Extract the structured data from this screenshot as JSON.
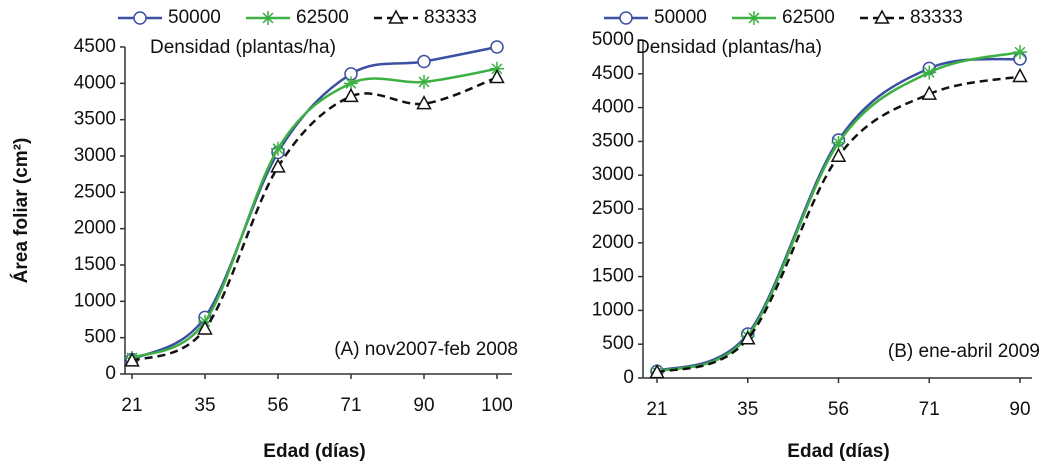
{
  "chart_data": [
    {
      "type": "line",
      "y_label": "Área foliar (cm²)",
      "x_label": "Edad (días)",
      "legend_title": "Densidad (plantas/ha)",
      "annotation": "(A) nov2007-feb 2008",
      "categories": [
        "21",
        "35",
        "56",
        "71",
        "90",
        "100"
      ],
      "series": [
        {
          "name": "50000",
          "color": "#3b4fa3",
          "marker": "circle",
          "dash": false,
          "values": [
            200,
            780,
            3050,
            4130,
            4300,
            4500
          ]
        },
        {
          "name": "62500",
          "color": "#3cb043",
          "marker": "star",
          "dash": false,
          "values": [
            220,
            720,
            3100,
            4000,
            4020,
            4200
          ]
        },
        {
          "name": "83333",
          "color": "#111111",
          "marker": "triangle",
          "dash": true,
          "values": [
            180,
            620,
            2850,
            3820,
            3720,
            4080
          ]
        }
      ],
      "ylim": [
        0,
        4500
      ],
      "yticks": [
        0,
        500,
        1000,
        1500,
        2000,
        2500,
        3000,
        3500,
        4000,
        4500
      ]
    },
    {
      "type": "line",
      "x_label": "Edad (días)",
      "legend_title": "Densidad (plantas/ha)",
      "annotation": "(B) ene-abril 2009",
      "categories": [
        "21",
        "35",
        "56",
        "71",
        "90"
      ],
      "series": [
        {
          "name": "50000",
          "color": "#3b4fa3",
          "marker": "circle",
          "dash": false,
          "values": [
            100,
            650,
            3520,
            4580,
            4720
          ]
        },
        {
          "name": "62500",
          "color": "#3cb043",
          "marker": "star",
          "dash": false,
          "values": [
            90,
            620,
            3480,
            4520,
            4820
          ]
        },
        {
          "name": "83333",
          "color": "#111111",
          "marker": "triangle",
          "dash": true,
          "values": [
            80,
            580,
            3280,
            4200,
            4460
          ]
        }
      ],
      "ylim": [
        0,
        5000
      ],
      "yticks": [
        0,
        500,
        1000,
        1500,
        2000,
        2500,
        3000,
        3500,
        4000,
        4500,
        5000
      ]
    }
  ]
}
